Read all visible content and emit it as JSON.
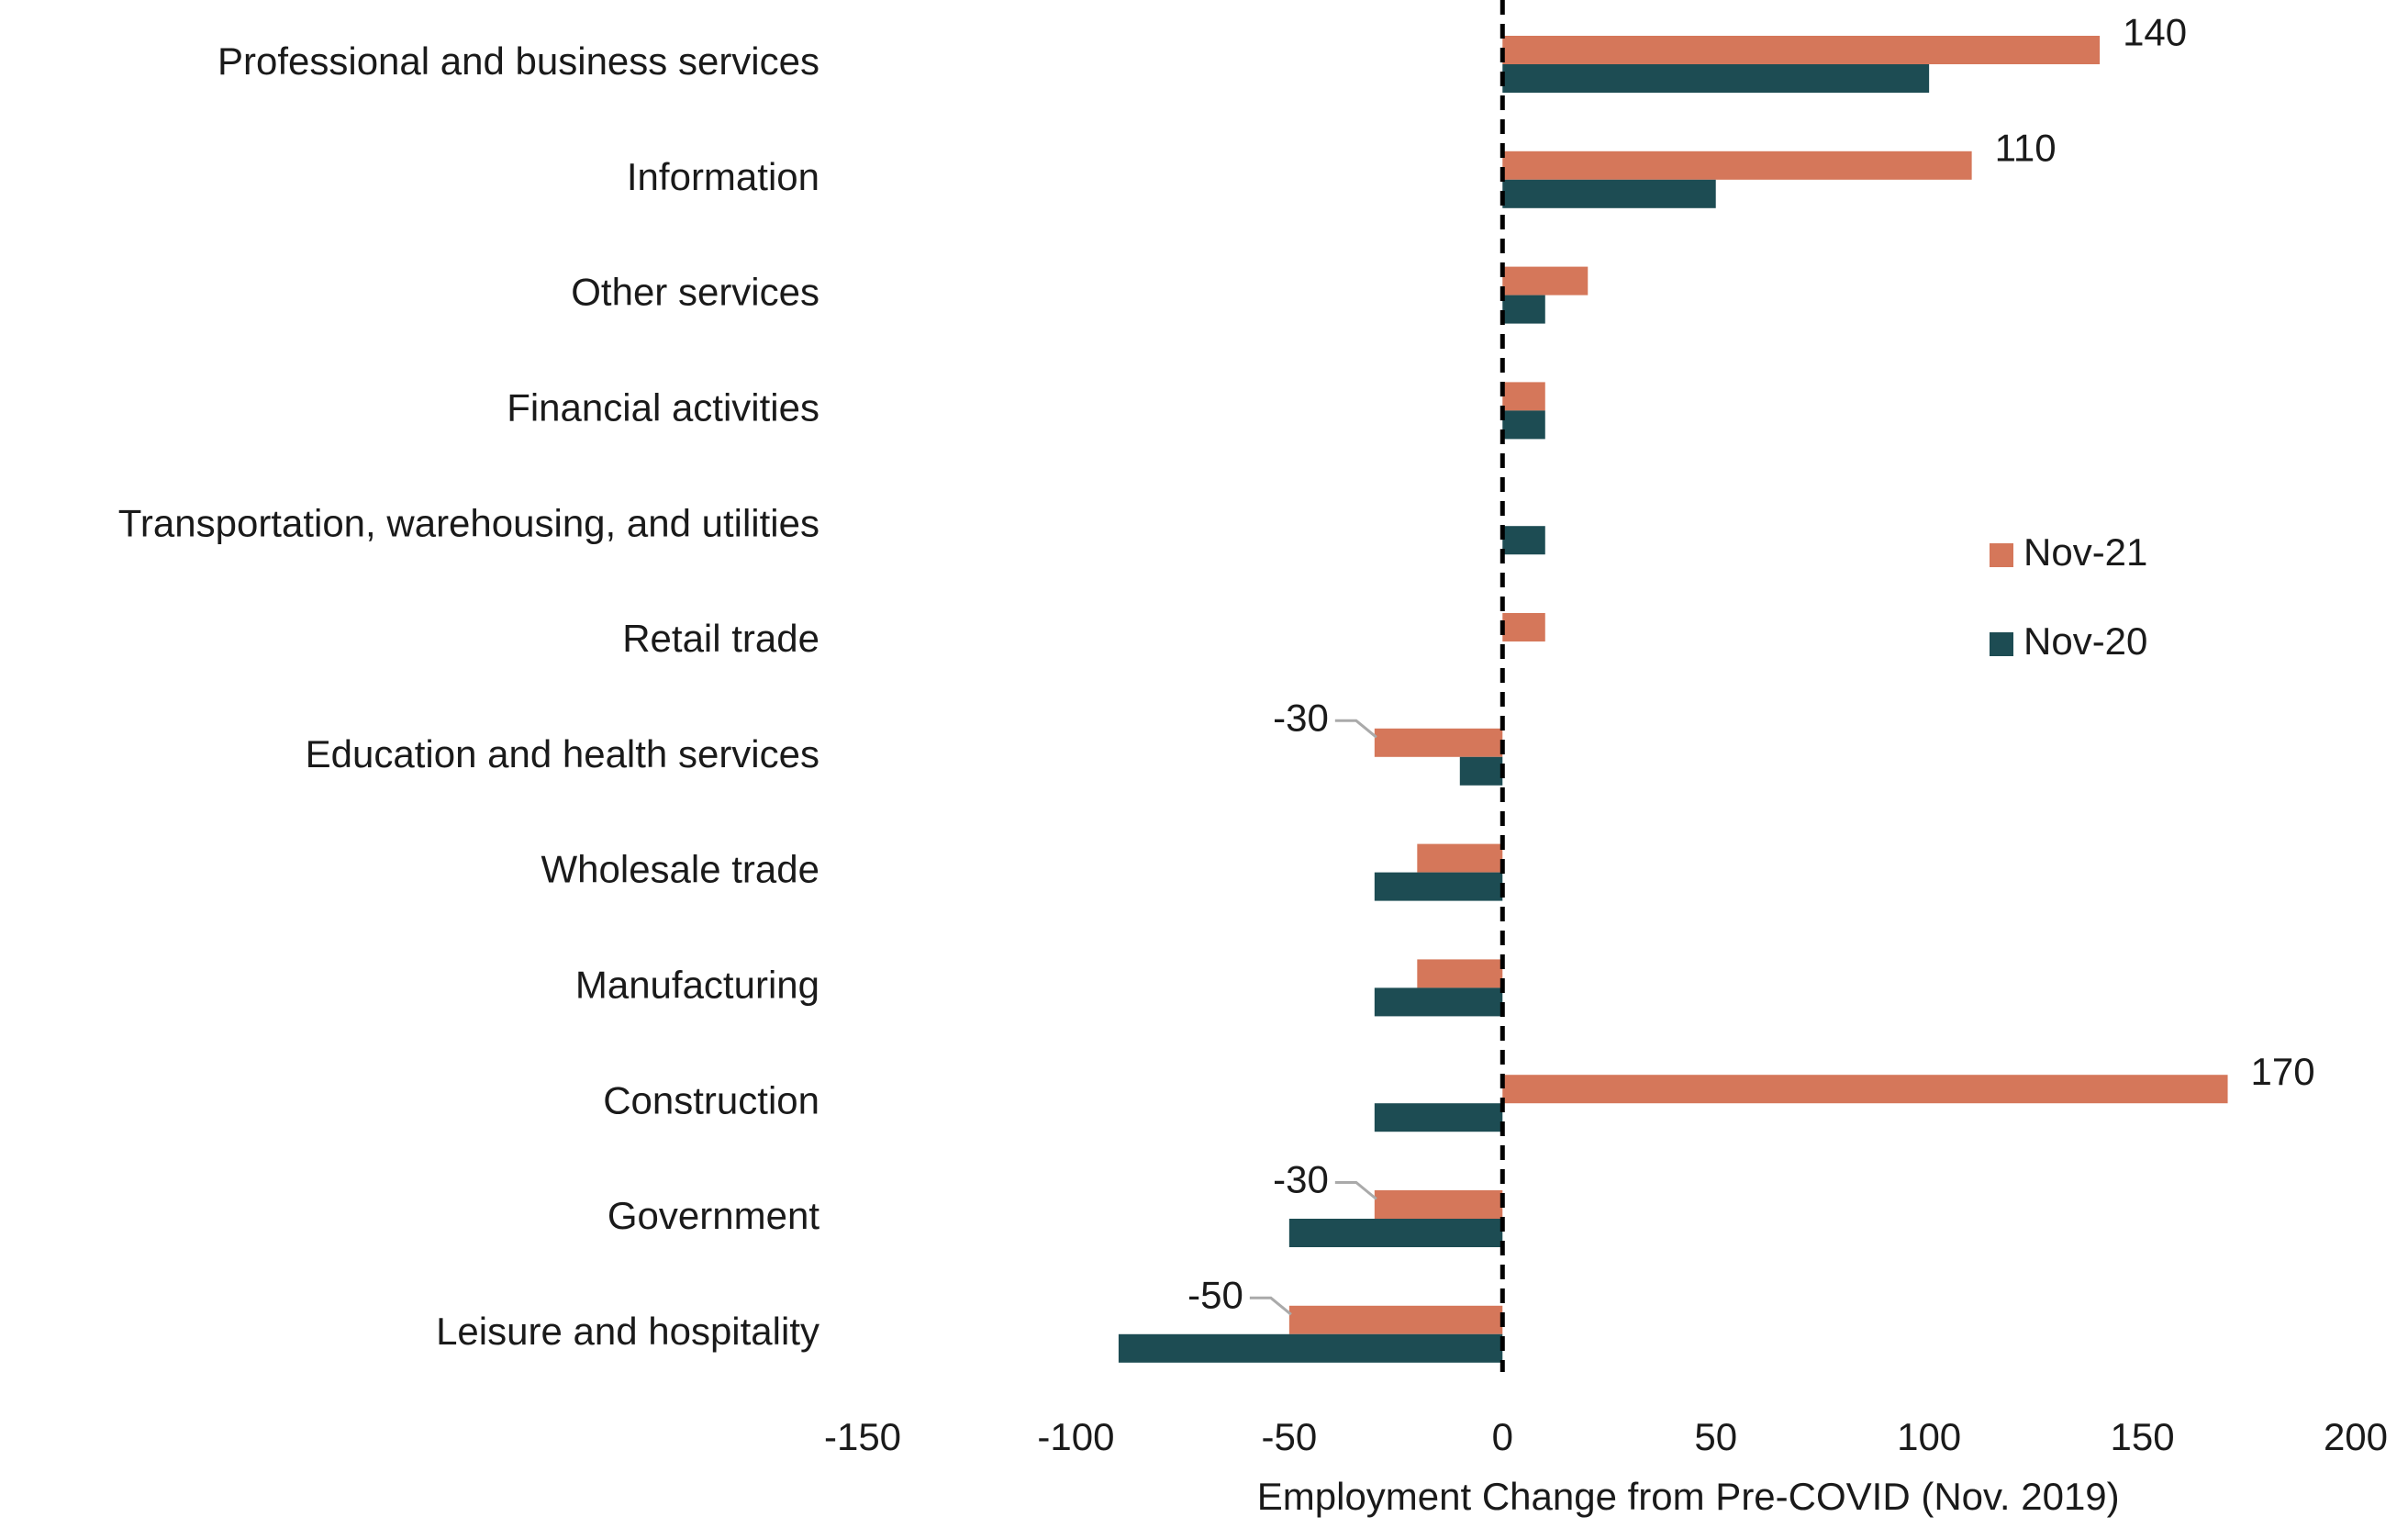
{
  "chart_data": {
    "type": "bar",
    "orientation": "horizontal",
    "title": "",
    "xlabel": "Employment Change from Pre-COVID (Nov. 2019)",
    "ylabel": "",
    "xlim": [
      -150,
      200
    ],
    "xticks": [
      -150,
      -100,
      -50,
      0,
      50,
      100,
      150,
      200
    ],
    "grid": false,
    "legend_position": "right",
    "categories": [
      "Professional and business services",
      "Information",
      "Other services",
      "Financial activities",
      "Transportation, warehousing, and utilities",
      "Retail trade",
      "Education and health services",
      "Wholesale trade",
      "Manufacturing",
      "Construction",
      "Government",
      "Leisure and hospitality"
    ],
    "series": [
      {
        "name": "Nov-21",
        "color": "#D5775A",
        "values": [
          140,
          110,
          20,
          10,
          0,
          10,
          -30,
          -20,
          -20,
          170,
          -30,
          -50
        ]
      },
      {
        "name": "Nov-20",
        "color": "#1D4C53",
        "values": [
          100,
          50,
          10,
          10,
          10,
          0,
          -10,
          -30,
          -30,
          -30,
          -50,
          -90
        ]
      }
    ],
    "data_labels": [
      {
        "category": "Professional and business services",
        "series": "Nov-21",
        "text": "140"
      },
      {
        "category": "Information",
        "series": "Nov-21",
        "text": "110"
      },
      {
        "category": "Education and health services",
        "series": "Nov-21",
        "text": "-30"
      },
      {
        "category": "Construction",
        "series": "Nov-21",
        "text": "170"
      },
      {
        "category": "Government",
        "series": "Nov-21",
        "text": "-30"
      },
      {
        "category": "Leisure and hospitality",
        "series": "Nov-21",
        "text": "-50"
      }
    ]
  }
}
